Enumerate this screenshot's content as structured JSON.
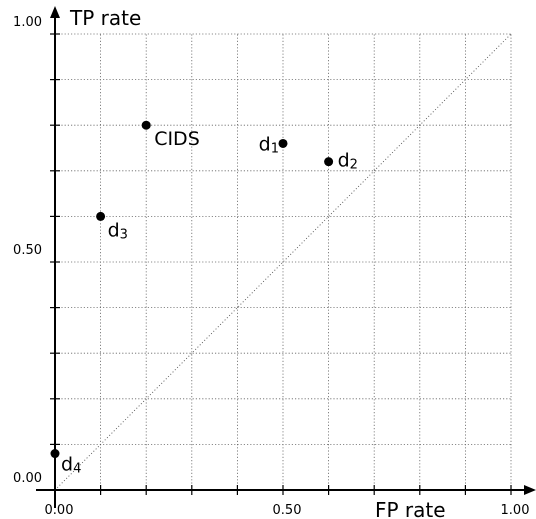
{
  "chart_data": {
    "type": "scatter",
    "xlabel": "FP rate",
    "ylabel": "TP rate",
    "xlim": [
      0,
      1
    ],
    "ylim": [
      0,
      1
    ],
    "x_ticks": [
      0,
      0.1,
      0.2,
      0.3,
      0.4,
      0.5,
      0.6,
      0.7,
      0.8,
      0.9,
      1.0
    ],
    "y_ticks": [
      0,
      0.1,
      0.2,
      0.3,
      0.4,
      0.5,
      0.6,
      0.7,
      0.8,
      0.9,
      1.0
    ],
    "x_tick_labels": [
      "0.00",
      "0.50",
      "1.00"
    ],
    "y_tick_labels": [
      "0.00",
      "0.50",
      "1.00"
    ],
    "grid": true,
    "diagonal_reference": true,
    "points": [
      {
        "label": "CIDS",
        "x": 0.2,
        "y": 0.8
      },
      {
        "label": "d",
        "subscript": "1",
        "x": 0.5,
        "y": 0.76
      },
      {
        "label": "d",
        "subscript": "2",
        "x": 0.6,
        "y": 0.72
      },
      {
        "label": "d",
        "subscript": "3",
        "x": 0.1,
        "y": 0.6
      },
      {
        "label": "d",
        "subscript": "4",
        "x": 0.0,
        "y": 0.08
      }
    ]
  }
}
